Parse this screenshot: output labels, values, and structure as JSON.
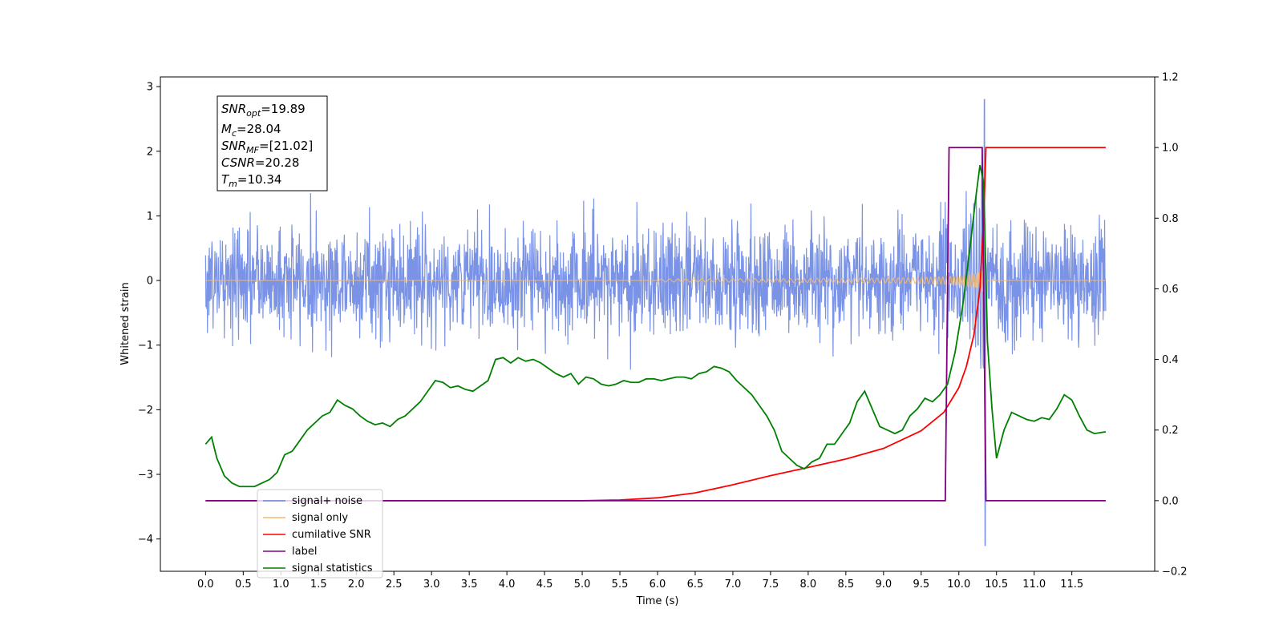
{
  "chart_data": {
    "type": "line",
    "title": "",
    "xlabel": "Time (s)",
    "ylabel": "Whitened strain",
    "xlim": [
      -0.6,
      12.6
    ],
    "ylim": [
      -4.5,
      3.15
    ],
    "y2lim": [
      -0.2,
      1.2
    ],
    "x_ticks": [
      "0.0",
      "0.5",
      "1.0",
      "1.5",
      "2.0",
      "2.5",
      "3.0",
      "3.5",
      "4.0",
      "4.5",
      "5.0",
      "5.5",
      "6.0",
      "6.5",
      "7.0",
      "7.5",
      "8.0",
      "8.5",
      "9.0",
      "9.5",
      "10.0",
      "10.5",
      "11.0",
      "11.5"
    ],
    "y_ticks": [
      "3",
      "2",
      "1",
      "0",
      "−1",
      "−2",
      "−3",
      "−4"
    ],
    "y2_ticks": [
      "1.2",
      "1.0",
      "0.8",
      "0.6",
      "0.4",
      "0.2",
      "0.0",
      "−0.2"
    ],
    "grid": false,
    "legend_placement": "lower-left",
    "annotation": {
      "snr_opt": {
        "main": "SNR",
        "sub": "opt",
        "value": "=19.89"
      },
      "mc": {
        "main": "M",
        "sub": "c",
        "value": "=28.04"
      },
      "snr_mf": {
        "main": "SNR",
        "sub": "MF",
        "value": "=[21.02]"
      },
      "csnr": {
        "main": "CSNR",
        "value": "=20.28"
      },
      "tm": {
        "main": "T",
        "sub": "m",
        "value": "=10.34"
      }
    },
    "series": [
      {
        "name": "signal+ noise",
        "color": "#6c87e3",
        "axis": "left",
        "kind": "noise",
        "amplitude": 1.1,
        "max": 2.8,
        "min": -4.1,
        "t_peak": 10.34
      },
      {
        "name": "signal only",
        "color": "#f5b96b",
        "axis": "left",
        "kind": "chirp",
        "t_start": 6.0,
        "t_merger": 10.34,
        "peak": 2.2
      },
      {
        "name": "cumilative SNR",
        "color": "#ff0000",
        "axis": "right",
        "x": [
          0.0,
          5.0,
          5.5,
          6.0,
          6.5,
          7.0,
          7.5,
          8.0,
          8.5,
          9.0,
          9.5,
          9.8,
          10.0,
          10.1,
          10.2,
          10.28,
          10.33,
          10.36,
          11.95
        ],
        "y": [
          0.0,
          0.0,
          0.002,
          0.008,
          0.022,
          0.045,
          0.071,
          0.094,
          0.118,
          0.148,
          0.198,
          0.25,
          0.32,
          0.38,
          0.47,
          0.6,
          0.8,
          1.0,
          1.0
        ]
      },
      {
        "name": "label",
        "color": "#800080",
        "axis": "right",
        "x": [
          0.0,
          9.82,
          9.87,
          10.31,
          10.36,
          11.95
        ],
        "y": [
          0.0,
          0.0,
          1.0,
          1.0,
          0.0,
          0.0
        ]
      },
      {
        "name": "signal statistics",
        "color": "#008000",
        "axis": "right",
        "x": [
          0.0,
          0.08,
          0.15,
          0.25,
          0.35,
          0.45,
          0.55,
          0.65,
          0.75,
          0.85,
          0.95,
          1.05,
          1.15,
          1.25,
          1.35,
          1.45,
          1.55,
          1.65,
          1.75,
          1.85,
          1.95,
          2.05,
          2.15,
          2.25,
          2.35,
          2.45,
          2.55,
          2.65,
          2.75,
          2.85,
          2.95,
          3.05,
          3.15,
          3.25,
          3.35,
          3.45,
          3.55,
          3.65,
          3.75,
          3.85,
          3.95,
          4.05,
          4.15,
          4.25,
          4.35,
          4.45,
          4.55,
          4.65,
          4.75,
          4.85,
          4.95,
          5.05,
          5.15,
          5.25,
          5.35,
          5.45,
          5.55,
          5.65,
          5.75,
          5.85,
          5.95,
          6.05,
          6.15,
          6.25,
          6.35,
          6.45,
          6.55,
          6.65,
          6.75,
          6.85,
          6.95,
          7.05,
          7.15,
          7.25,
          7.35,
          7.45,
          7.55,
          7.65,
          7.75,
          7.85,
          7.95,
          8.05,
          8.15,
          8.25,
          8.35,
          8.45,
          8.55,
          8.65,
          8.75,
          8.85,
          8.95,
          9.05,
          9.15,
          9.25,
          9.35,
          9.45,
          9.55,
          9.65,
          9.75,
          9.85,
          9.95,
          10.05,
          10.15,
          10.22,
          10.28,
          10.33,
          10.38,
          10.44,
          10.5,
          10.6,
          10.7,
          10.8,
          10.9,
          11.0,
          11.1,
          11.2,
          11.3,
          11.4,
          11.5,
          11.6,
          11.7,
          11.8,
          11.95
        ],
        "y": [
          0.16,
          0.18,
          0.12,
          0.07,
          0.05,
          0.04,
          0.04,
          0.04,
          0.05,
          0.06,
          0.08,
          0.13,
          0.14,
          0.17,
          0.2,
          0.22,
          0.24,
          0.25,
          0.285,
          0.27,
          0.26,
          0.24,
          0.225,
          0.215,
          0.22,
          0.21,
          0.23,
          0.24,
          0.26,
          0.28,
          0.31,
          0.34,
          0.335,
          0.32,
          0.325,
          0.315,
          0.31,
          0.325,
          0.34,
          0.4,
          0.405,
          0.39,
          0.405,
          0.395,
          0.4,
          0.39,
          0.375,
          0.36,
          0.35,
          0.36,
          0.33,
          0.35,
          0.345,
          0.33,
          0.325,
          0.33,
          0.34,
          0.335,
          0.335,
          0.345,
          0.345,
          0.34,
          0.345,
          0.35,
          0.35,
          0.345,
          0.36,
          0.365,
          0.38,
          0.375,
          0.365,
          0.34,
          0.32,
          0.3,
          0.27,
          0.24,
          0.2,
          0.14,
          0.12,
          0.1,
          0.09,
          0.11,
          0.12,
          0.16,
          0.16,
          0.19,
          0.22,
          0.28,
          0.31,
          0.26,
          0.21,
          0.2,
          0.19,
          0.2,
          0.24,
          0.26,
          0.29,
          0.28,
          0.3,
          0.33,
          0.42,
          0.55,
          0.72,
          0.85,
          0.95,
          0.9,
          0.45,
          0.26,
          0.12,
          0.2,
          0.25,
          0.24,
          0.23,
          0.225,
          0.235,
          0.23,
          0.26,
          0.3,
          0.285,
          0.24,
          0.2,
          0.19,
          0.195
        ]
      }
    ]
  }
}
